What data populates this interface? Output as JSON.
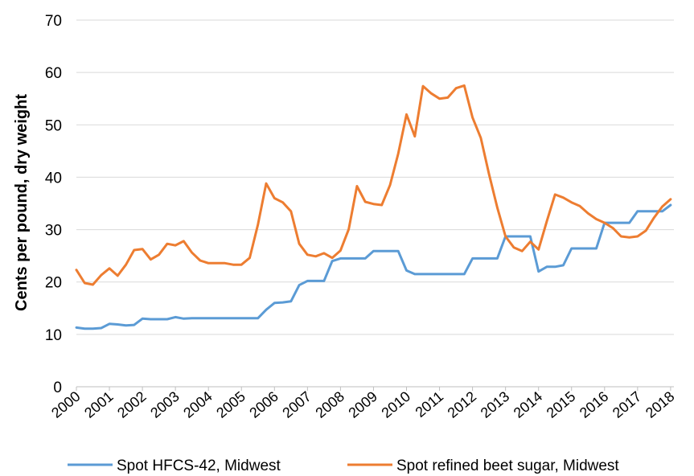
{
  "chart_data": {
    "type": "line",
    "title": "",
    "xlabel": "",
    "ylabel": "Cents per pound, dry weight",
    "ylim": [
      0,
      70
    ],
    "yticks": [
      "0",
      "10",
      "20",
      "30",
      "40",
      "50",
      "60",
      "70"
    ],
    "xticks": [
      "2000",
      "2001",
      "2002",
      "2003",
      "2004",
      "2005",
      "2006",
      "2007",
      "2008",
      "2009",
      "2010",
      "2011",
      "2012",
      "2013",
      "2014",
      "2015",
      "2016",
      "2017",
      "2018"
    ],
    "grid": "horizontal",
    "legend_position": "bottom",
    "series": [
      {
        "name": "Spot HFCS-42, Midwest",
        "color": "#5b9bd5",
        "x": [
          2000,
          2000.25,
          2000.5,
          2000.75,
          2001,
          2001.25,
          2001.5,
          2001.75,
          2002,
          2002.25,
          2002.5,
          2002.75,
          2003,
          2003.25,
          2003.5,
          2003.75,
          2004,
          2004.25,
          2004.5,
          2004.75,
          2005,
          2005.25,
          2005.5,
          2005.75,
          2006,
          2006.25,
          2006.5,
          2006.75,
          2007,
          2007.25,
          2007.5,
          2007.75,
          2008,
          2008.25,
          2008.5,
          2008.75,
          2009,
          2009.25,
          2009.5,
          2009.75,
          2010,
          2010.25,
          2010.5,
          2010.75,
          2011,
          2011.25,
          2011.5,
          2011.75,
          2012,
          2012.25,
          2012.5,
          2012.75,
          2013,
          2013.25,
          2013.5,
          2013.75,
          2014,
          2014.25,
          2014.5,
          2014.75,
          2015,
          2015.25,
          2015.5,
          2015.75,
          2016,
          2016.25,
          2016.5,
          2016.75,
          2017,
          2017.25,
          2017.5,
          2017.75,
          2018
        ],
        "values": [
          11.3,
          11.1,
          11.1,
          11.2,
          12.0,
          11.9,
          11.7,
          11.8,
          13.0,
          12.9,
          12.9,
          12.9,
          13.3,
          13.0,
          13.1,
          13.1,
          13.1,
          13.1,
          13.1,
          13.1,
          13.1,
          13.1,
          13.1,
          14.7,
          16.0,
          16.1,
          16.3,
          19.4,
          20.2,
          20.2,
          20.2,
          24.0,
          24.5,
          24.5,
          24.5,
          24.5,
          25.9,
          25.9,
          25.9,
          25.9,
          22.2,
          21.5,
          21.5,
          21.5,
          21.5,
          21.5,
          21.5,
          21.5,
          24.5,
          24.5,
          24.5,
          24.5,
          28.7,
          28.7,
          28.7,
          28.7,
          22.0,
          22.9,
          22.9,
          23.2,
          26.4,
          26.4,
          26.4,
          26.4,
          31.3,
          31.3,
          31.3,
          31.3,
          33.5,
          33.5,
          33.5,
          33.5,
          34.7
        ]
      },
      {
        "name": "Spot refined beet sugar, Midwest",
        "color": "#ed7d31",
        "x": [
          2000,
          2000.25,
          2000.5,
          2000.75,
          2001,
          2001.25,
          2001.5,
          2001.75,
          2002,
          2002.25,
          2002.5,
          2002.75,
          2003,
          2003.25,
          2003.5,
          2003.75,
          2004,
          2004.25,
          2004.5,
          2004.75,
          2005,
          2005.25,
          2005.5,
          2005.75,
          2006,
          2006.25,
          2006.5,
          2006.75,
          2007,
          2007.25,
          2007.5,
          2007.75,
          2008,
          2008.25,
          2008.5,
          2008.75,
          2009,
          2009.25,
          2009.5,
          2009.75,
          2010,
          2010.25,
          2010.5,
          2010.75,
          2011,
          2011.25,
          2011.5,
          2011.75,
          2012,
          2012.25,
          2012.5,
          2012.75,
          2013,
          2013.25,
          2013.5,
          2013.75,
          2014,
          2014.25,
          2014.5,
          2014.75,
          2015,
          2015.25,
          2015.5,
          2015.75,
          2016,
          2016.25,
          2016.5,
          2016.75,
          2017,
          2017.25,
          2017.5,
          2017.75,
          2018
        ],
        "values": [
          22.3,
          19.8,
          19.5,
          21.3,
          22.6,
          21.2,
          23.3,
          26.1,
          26.3,
          24.3,
          25.2,
          27.3,
          27.0,
          27.8,
          25.6,
          24.1,
          23.6,
          23.6,
          23.6,
          23.3,
          23.3,
          24.6,
          31.0,
          38.8,
          36.0,
          35.2,
          33.5,
          27.3,
          25.2,
          24.9,
          25.5,
          24.6,
          26.0,
          30.1,
          38.3,
          35.3,
          34.9,
          34.7,
          38.5,
          44.5,
          52.0,
          47.8,
          57.4,
          56.0,
          55.0,
          55.2,
          57.0,
          57.5,
          51.4,
          47.5,
          40.6,
          34.2,
          28.7,
          26.6,
          25.9,
          27.7,
          26.2,
          31.6,
          36.7,
          36.1,
          35.2,
          34.5,
          33.1,
          32.0,
          31.3,
          30.3,
          28.7,
          28.5,
          28.7,
          29.8,
          32.3,
          34.4,
          35.8
        ]
      }
    ]
  }
}
